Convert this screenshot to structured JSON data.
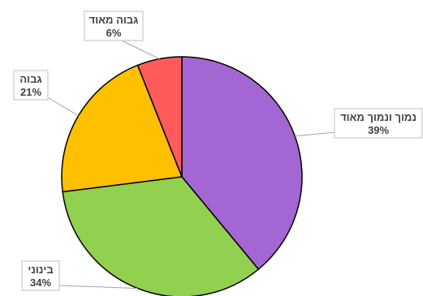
{
  "chart_data": {
    "type": "pie",
    "title": "",
    "start_angle_deg": 0,
    "direction": "clockwise",
    "slices": [
      {
        "label": "נמוך ונמוך מאוד",
        "value": 39,
        "value_label": "39%",
        "color": "#A366D2"
      },
      {
        "label": "בינוני",
        "value": 34,
        "value_label": "34%",
        "color": "#92D050"
      },
      {
        "label": "גבוה",
        "value": 21,
        "value_label": "21%",
        "color": "#FFC000"
      },
      {
        "label": "גבוה מאוד",
        "value": 6,
        "value_label": "6%",
        "color": "#FF5B5B"
      }
    ]
  }
}
